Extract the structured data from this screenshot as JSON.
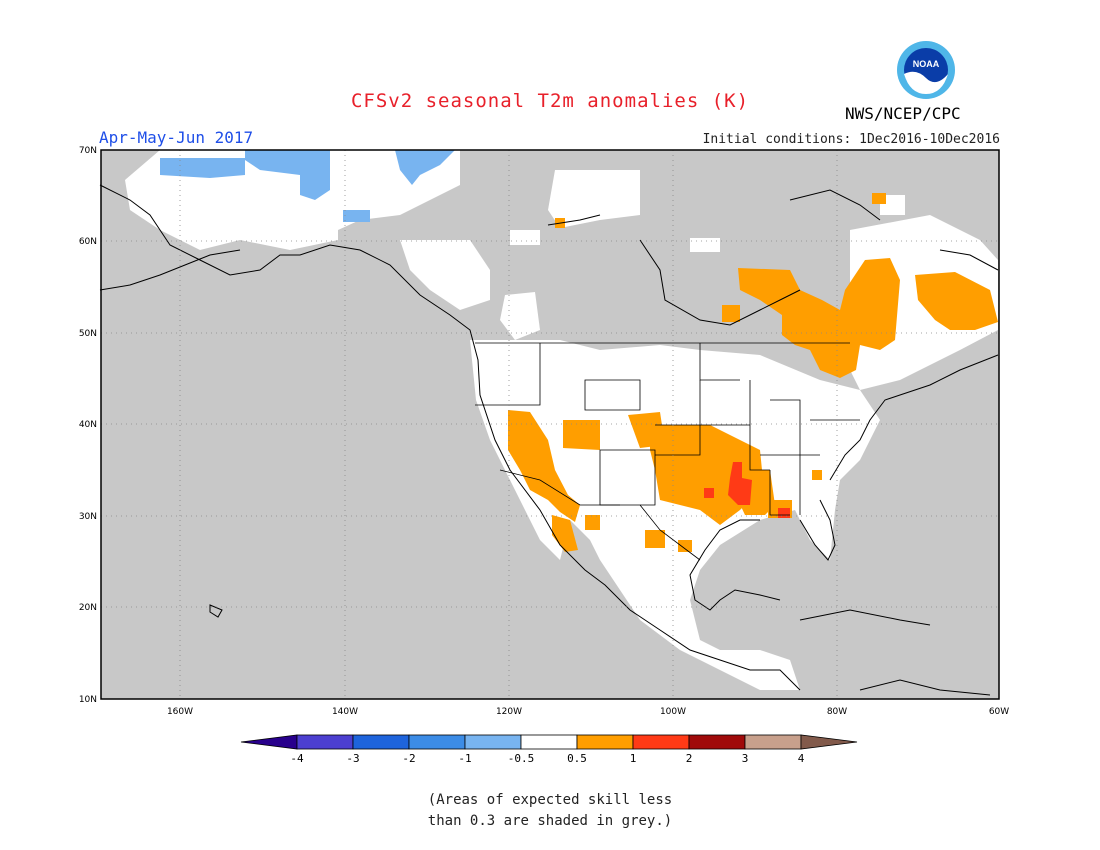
{
  "title": "CFSv2 seasonal T2m anomalies (K)",
  "period": "Apr-May-Jun 2017",
  "initial_conditions": "Initial conditions: 1Dec2016-10Dec2016",
  "agency": "NWS/NCEP/CPC",
  "logo_text": "NOAA",
  "map": {
    "region": "North America",
    "lat_range": [
      10,
      70
    ],
    "lon_range": [
      -172,
      -60
    ],
    "lat_ticks": [
      "70N",
      "60N",
      "50N",
      "40N",
      "30N",
      "20N",
      "10N"
    ],
    "lon_ticks": [
      "160W",
      "140W",
      "120W",
      "100W",
      "80W",
      "60W"
    ],
    "grid": true,
    "low_skill_color": "#c8c8c8",
    "regions": [
      {
        "name": "Southwest US & Baja California",
        "anomaly_class": "0.5 to 1",
        "color": "#ff9e00"
      },
      {
        "name": "Southern Plains (Oklahoma, Texas)",
        "anomaly_class": "0.5 to 1",
        "color": "#ff9e00"
      },
      {
        "name": "Lower Mississippi Valley",
        "anomaly_class": "1 to 2",
        "color": "#ff3a16"
      },
      {
        "name": "Gulf Coast (Florida panhandle)",
        "anomaly_class": "1 to 2",
        "color": "#ff3a16"
      },
      {
        "name": "Quebec / Labrador",
        "anomaly_class": "0.5 to 1",
        "color": "#ff9e00"
      },
      {
        "name": "Northern Ontario / Hudson Bay",
        "anomaly_class": "0.5 to 1",
        "color": "#ff9e00"
      },
      {
        "name": "Northern Alaska",
        "anomaly_class": "-1 to -0.5",
        "color": "#78b4f0"
      }
    ]
  },
  "colorbar": {
    "labels": [
      "-4",
      "-3",
      "-2",
      "-1",
      "-0.5",
      "0.5",
      "1",
      "2",
      "3",
      "4"
    ],
    "colors": [
      "#28008c",
      "#4c3fd0",
      "#1e64dc",
      "#3c8ce6",
      "#78b4f0",
      "#ffffff",
      "#ff9e00",
      "#ff3a16",
      "#a00a0a",
      "#c8a08c",
      "#825a4b"
    ]
  },
  "note_line1": "(Areas of expected skill less",
  "note_line2": "than 0.3 are shaded in grey.)"
}
